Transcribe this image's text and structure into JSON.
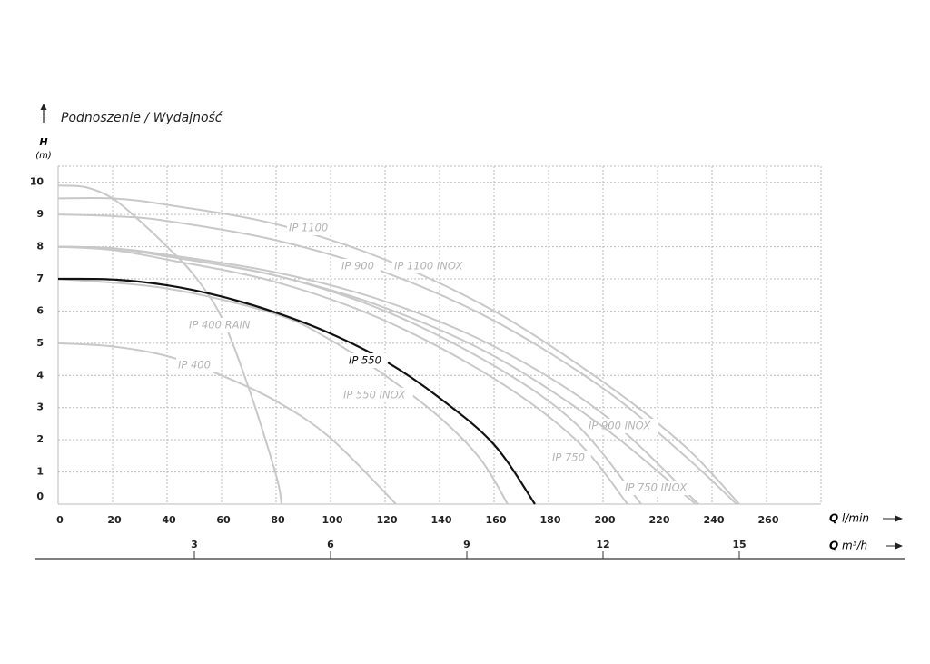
{
  "chart_data": {
    "type": "line",
    "title": "Podnoszenie / Wydajność",
    "ylabel_symbol": "H",
    "ylabel_unit": "(m)",
    "xlabel_symbol": "Q",
    "xlabel_unit": "l/min",
    "x2label_symbol": "Q",
    "x2label_unit": "m³/h",
    "xlim": [
      0,
      280
    ],
    "xticks": [
      0,
      20,
      40,
      60,
      80,
      100,
      120,
      140,
      160,
      180,
      200,
      220,
      240,
      260
    ],
    "x2lim": [
      0,
      16.8
    ],
    "x2ticks": [
      3,
      6,
      9,
      12,
      15
    ],
    "ylim": [
      0,
      10.5
    ],
    "yticks": [
      0,
      1,
      2,
      3,
      4,
      5,
      6,
      7,
      8,
      9,
      10
    ],
    "grid": true,
    "series": [
      {
        "name": "IP 1100",
        "color": "#c8c8c8",
        "x": [
          0,
          20,
          40,
          80,
          120,
          160,
          200,
          230,
          250
        ],
        "values": [
          9.5,
          9.5,
          9.3,
          8.7,
          7.6,
          6.0,
          3.8,
          1.8,
          0
        ]
      },
      {
        "name": "IP 1100 INOX",
        "color": "#c8c8c8",
        "x": [
          0,
          20,
          40,
          80,
          120,
          160,
          200,
          230,
          249
        ],
        "values": [
          9.0,
          8.95,
          8.8,
          8.2,
          7.2,
          5.7,
          3.6,
          1.5,
          0
        ]
      },
      {
        "name": "IP 900",
        "color": "#c8c8c8",
        "x": [
          0,
          20,
          40,
          80,
          120,
          160,
          190,
          214
        ],
        "values": [
          8.0,
          7.95,
          7.7,
          7.1,
          6.0,
          4.3,
          2.5,
          0
        ]
      },
      {
        "name": "IP 900 INOX",
        "color": "#c8c8c8",
        "x": [
          0,
          20,
          40,
          80,
          120,
          160,
          200,
          235
        ],
        "values": [
          8.0,
          7.95,
          7.75,
          7.2,
          6.3,
          4.9,
          2.8,
          0
        ]
      },
      {
        "name": "IP 750",
        "color": "#c8c8c8",
        "x": [
          0,
          20,
          40,
          80,
          120,
          160,
          190,
          209
        ],
        "values": [
          8.0,
          7.9,
          7.6,
          6.9,
          5.7,
          3.9,
          2.0,
          0
        ]
      },
      {
        "name": "IP 750 INOX",
        "color": "#c8c8c8",
        "x": [
          0,
          20,
          40,
          80,
          120,
          160,
          200,
          234
        ],
        "values": [
          8.0,
          7.95,
          7.7,
          7.1,
          6.1,
          4.6,
          2.4,
          0
        ]
      },
      {
        "name": "IP 550",
        "color": "#111111",
        "x": [
          0,
          20,
          40,
          60,
          80,
          100,
          120,
          140,
          160,
          175
        ],
        "values": [
          7.0,
          6.98,
          6.8,
          6.45,
          5.95,
          5.3,
          4.45,
          3.3,
          1.85,
          0
        ]
      },
      {
        "name": "IP 550 INOX",
        "color": "#c8c8c8",
        "x": [
          0,
          40,
          80,
          100,
          120,
          140,
          155,
          165
        ],
        "values": [
          7.0,
          6.7,
          5.9,
          5.1,
          4.0,
          2.7,
          1.4,
          0
        ]
      },
      {
        "name": "IP 400",
        "color": "#c8c8c8",
        "x": [
          0,
          20,
          40,
          60,
          80,
          100,
          124
        ],
        "values": [
          5.0,
          4.9,
          4.6,
          4.0,
          3.2,
          2.05,
          0
        ]
      },
      {
        "name": "IP 400 RAIN",
        "color": "#c8c8c8",
        "x": [
          0,
          10,
          20,
          30,
          40,
          50,
          60,
          70,
          80,
          82
        ],
        "values": [
          9.9,
          9.85,
          9.5,
          8.8,
          8.0,
          7.1,
          5.8,
          3.6,
          0.9,
          0
        ]
      }
    ]
  }
}
